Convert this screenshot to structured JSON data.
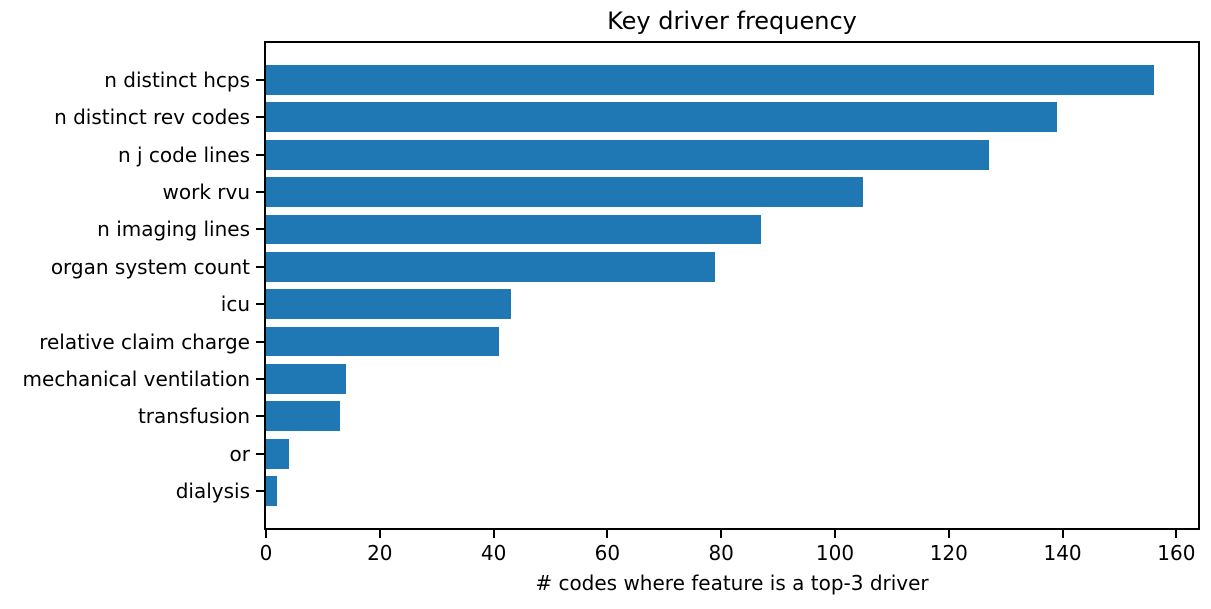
{
  "chart_data": {
    "type": "bar",
    "orientation": "horizontal",
    "title": "Key driver frequency",
    "xlabel": "# codes where feature is a top-3 driver",
    "categories": [
      "n distinct hcps",
      "n distinct rev codes",
      "n j code lines",
      "work rvu",
      "n imaging lines",
      "organ system count",
      "icu",
      "relative claim charge",
      "mechanical ventilation",
      "transfusion",
      "or",
      "dialysis"
    ],
    "values": [
      156,
      139,
      127,
      105,
      87,
      79,
      43,
      41,
      14,
      13,
      4,
      2
    ],
    "xticks": [
      0,
      20,
      40,
      60,
      80,
      100,
      120,
      140,
      160
    ],
    "xlim": [
      0,
      163.8
    ],
    "grid": false,
    "legend": null,
    "bar_color": "#1f77b4",
    "text_color": "#000000",
    "spine_color": "#000000",
    "background_color": "#ffffff"
  }
}
